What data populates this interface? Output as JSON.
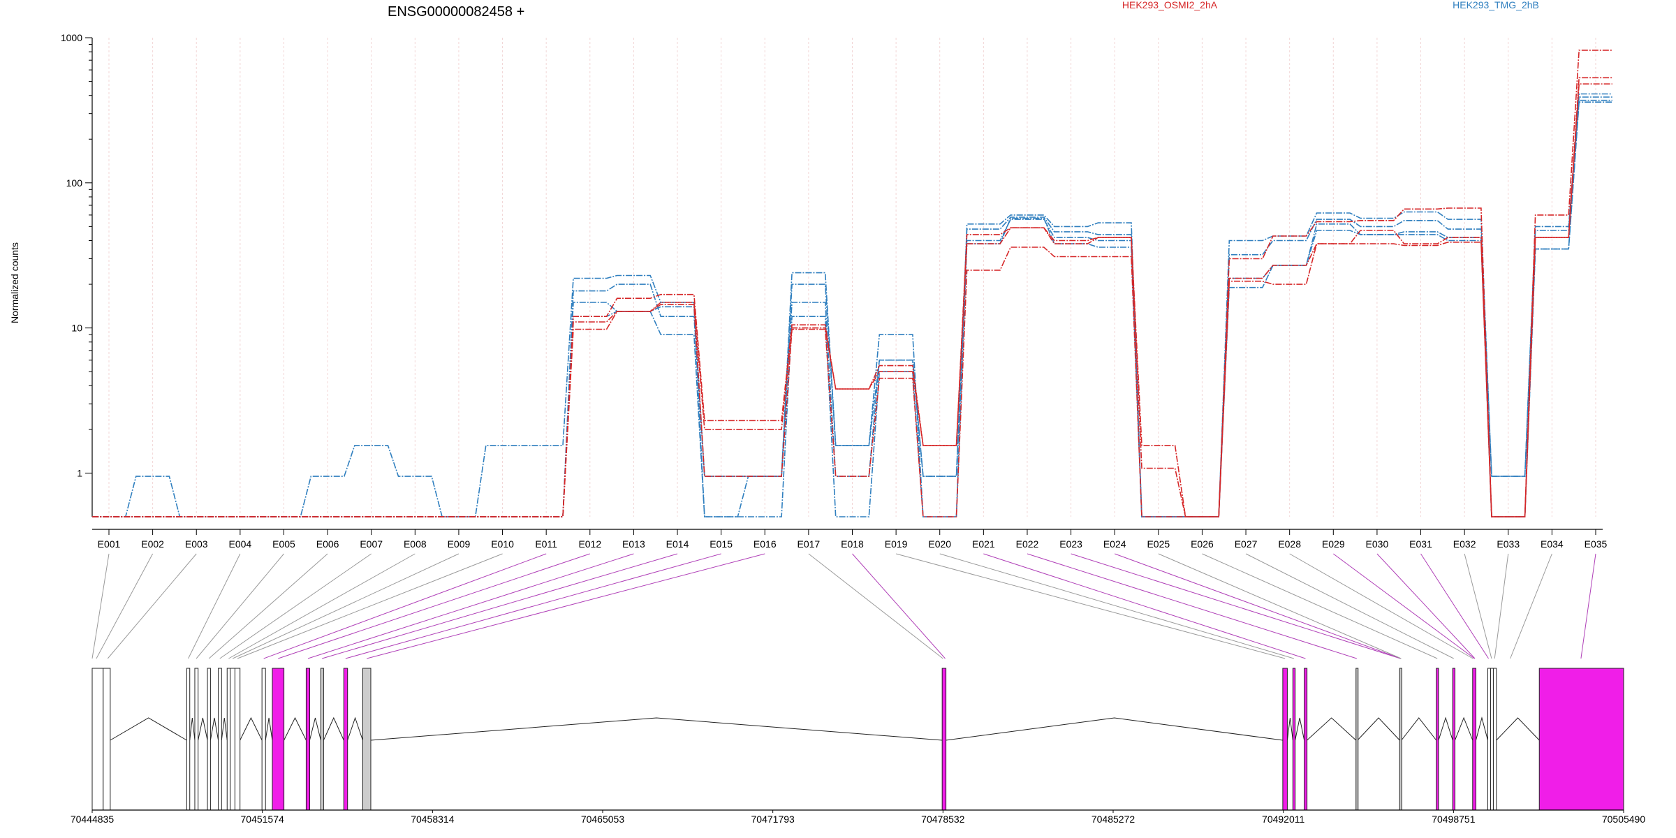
{
  "chart_data": {
    "type": "line",
    "title": "ENSG00000082458 +",
    "ylabel": "Normalized counts",
    "xlabel": "",
    "y_scale": "log",
    "ylim": [
      0.5,
      1000
    ],
    "yticks": [
      "1000",
      "100",
      "10",
      "1"
    ],
    "grid": "vertical dotted at each exon",
    "legend_position": "top",
    "legend": [
      {
        "label": "HEK293_OSMI2_2hA",
        "color": "#d62728"
      },
      {
        "label": "HEK293_TMG_2hB",
        "color": "#2f7fbf"
      }
    ],
    "categories": [
      "E001",
      "E002",
      "E003",
      "E004",
      "E005",
      "E006",
      "E007",
      "E008",
      "E009",
      "E010",
      "E011",
      "E012",
      "E013",
      "E014",
      "E015",
      "E016",
      "E017",
      "E018",
      "E019",
      "E020",
      "E021",
      "E022",
      "E023",
      "E024",
      "E025",
      "E026",
      "E027",
      "E028",
      "E029",
      "E030",
      "E031",
      "E032",
      "E033",
      "E034",
      "E035"
    ],
    "series": [
      {
        "group": "HEK293_TMG_2hB",
        "color": "#2f7fbf",
        "values": [
          0.5,
          0.95,
          0.5,
          0.5,
          0.5,
          0.95,
          1.55,
          0.95,
          0.5,
          1.55,
          1.55,
          22,
          23,
          15,
          0.95,
          0.95,
          24,
          1.55,
          9,
          0.5,
          52,
          60,
          50,
          53,
          0.5,
          0.5,
          40,
          43,
          62,
          57,
          63,
          56,
          0.95,
          47,
          410
        ]
      },
      {
        "group": "HEK293_TMG_2hB",
        "color": "#2f7fbf",
        "values": [
          0.5,
          0.5,
          0.5,
          0.5,
          0.5,
          0.5,
          0.5,
          0.5,
          0.5,
          0.5,
          0.5,
          18,
          20,
          12,
          0.95,
          0.95,
          20,
          1.55,
          6,
          0.95,
          48,
          58,
          46,
          44,
          0.5,
          0.5,
          32,
          40,
          56,
          50,
          55,
          48,
          0.95,
          50,
          390
        ]
      },
      {
        "group": "HEK293_TMG_2hB",
        "color": "#2f7fbf",
        "values": [
          0.5,
          0.5,
          0.5,
          0.5,
          0.5,
          0.5,
          0.5,
          0.5,
          0.5,
          0.5,
          0.5,
          15,
          13,
          9,
          0.5,
          0.95,
          15,
          0.95,
          6,
          0.95,
          40,
          56,
          42,
          40,
          0.5,
          0.5,
          22,
          27,
          47,
          44,
          46,
          42,
          0.5,
          35,
          370
        ]
      },
      {
        "group": "HEK293_TMG_2hB",
        "color": "#2f7fbf",
        "values": [
          0.5,
          0.5,
          0.5,
          0.5,
          0.5,
          0.5,
          0.5,
          0.5,
          0.5,
          0.5,
          0.5,
          12,
          13,
          14,
          0.5,
          0.5,
          12,
          0.5,
          5,
          0.5,
          38,
          57,
          38,
          36,
          0.5,
          0.5,
          19,
          27,
          52,
          44,
          44,
          40,
          0.5,
          35,
          360
        ]
      },
      {
        "group": "HEK293_OSMI2_2hA",
        "color": "#d62728",
        "values": [
          0.5,
          0.5,
          0.5,
          0.5,
          0.5,
          0.5,
          0.5,
          0.5,
          0.5,
          0.5,
          0.5,
          12,
          16,
          17,
          2.3,
          2.3,
          10.5,
          3.8,
          5.5,
          1.55,
          44,
          49,
          40,
          42,
          1.55,
          0.5,
          30,
          43,
          54,
          55,
          66,
          67,
          0.5,
          60,
          820
        ]
      },
      {
        "group": "HEK293_OSMI2_2hA",
        "color": "#d62728",
        "values": [
          0.5,
          0.5,
          0.5,
          0.5,
          0.5,
          0.5,
          0.5,
          0.5,
          0.5,
          0.5,
          0.5,
          11,
          13,
          15,
          2.0,
          2.0,
          10,
          3.8,
          5,
          1.55,
          38,
          49,
          38,
          42,
          1.08,
          0.5,
          22,
          27,
          38,
          47,
          38,
          42,
          0.5,
          42,
          530
        ]
      },
      {
        "group": "HEK293_OSMI2_2hA",
        "color": "#d62728",
        "values": [
          0.5,
          0.5,
          0.5,
          0.5,
          0.5,
          0.5,
          0.5,
          0.5,
          0.5,
          0.5,
          0.5,
          9.8,
          13,
          14.5,
          0.95,
          0.95,
          9.8,
          0.95,
          4.5,
          0.5,
          25,
          36,
          31,
          31,
          0.5,
          0.5,
          21,
          20,
          38,
          38,
          37,
          39,
          0.5,
          42,
          480
        ]
      }
    ],
    "genomic_axis": {
      "start": 70444835,
      "end": 70505490,
      "tick_labels": [
        "70444835",
        "70451574",
        "70458314",
        "70465053",
        "70471793",
        "70478532",
        "70485272",
        "70492011",
        "70498751",
        "70505490"
      ],
      "tick_values": [
        70444835,
        70451574,
        70458314,
        70465053,
        70471793,
        70478532,
        70485272,
        70492011,
        70498751,
        70505490
      ]
    },
    "exons": [
      {
        "start": 70444835,
        "end": 70445270,
        "fill": "#ffffff"
      },
      {
        "start": 70445270,
        "end": 70445550,
        "fill": "#ffffff"
      },
      {
        "start": 70448580,
        "end": 70448700,
        "fill": "#ffffff"
      },
      {
        "start": 70448900,
        "end": 70449030,
        "fill": "#ffffff"
      },
      {
        "start": 70449400,
        "end": 70449520,
        "fill": "#ffffff"
      },
      {
        "start": 70449830,
        "end": 70449960,
        "fill": "#ffffff"
      },
      {
        "start": 70450180,
        "end": 70450300,
        "fill": "#ffffff"
      },
      {
        "start": 70450300,
        "end": 70450490,
        "fill": "#ffffff"
      },
      {
        "start": 70450490,
        "end": 70450690,
        "fill": "#ffffff"
      },
      {
        "start": 70451560,
        "end": 70451700,
        "fill": "#ffffff"
      },
      {
        "start": 70451970,
        "end": 70452430,
        "fill": "#f01ee8"
      },
      {
        "start": 70453310,
        "end": 70453450,
        "fill": "#f01ee8"
      },
      {
        "start": 70453890,
        "end": 70454000,
        "fill": "#cccccc"
      },
      {
        "start": 70454800,
        "end": 70454950,
        "fill": "#f01ee8"
      },
      {
        "start": 70455550,
        "end": 70455870,
        "fill": "#cccccc"
      },
      {
        "start": 70478500,
        "end": 70478650,
        "fill": "#f01ee8"
      },
      {
        "start": 70491990,
        "end": 70492170,
        "fill": "#f01ee8"
      },
      {
        "start": 70492390,
        "end": 70492480,
        "fill": "#f01ee8"
      },
      {
        "start": 70492840,
        "end": 70492950,
        "fill": "#f01ee8"
      },
      {
        "start": 70494890,
        "end": 70494950,
        "fill": "#cccccc"
      },
      {
        "start": 70496620,
        "end": 70496690,
        "fill": "#cccccc"
      },
      {
        "start": 70498070,
        "end": 70498160,
        "fill": "#f01ee8"
      },
      {
        "start": 70498720,
        "end": 70498810,
        "fill": "#f01ee8"
      },
      {
        "start": 70499510,
        "end": 70499640,
        "fill": "#f01ee8"
      },
      {
        "start": 70500110,
        "end": 70500220,
        "fill": "#ffffff"
      },
      {
        "start": 70500220,
        "end": 70500330,
        "fill": "#ffffff"
      },
      {
        "start": 70500330,
        "end": 70500450,
        "fill": "#ffffff"
      },
      {
        "start": 70502150,
        "end": 70505490,
        "fill": "#f01ee8"
      }
    ],
    "bin_positions": [
      70444835,
      70445000,
      70445450,
      70448640,
      70448960,
      70449460,
      70449890,
      70450240,
      70450400,
      70450590,
      70451630,
      70452200,
      70453380,
      70453940,
      70454870,
      70455710,
      70478530,
      70478620,
      70492080,
      70492430,
      70492890,
      70494920,
      70496650,
      70496660,
      70496680,
      70498110,
      70498760,
      70499520,
      70499580,
      70499600,
      70500140,
      70500260,
      70500380,
      70501000,
      70503800
    ]
  }
}
